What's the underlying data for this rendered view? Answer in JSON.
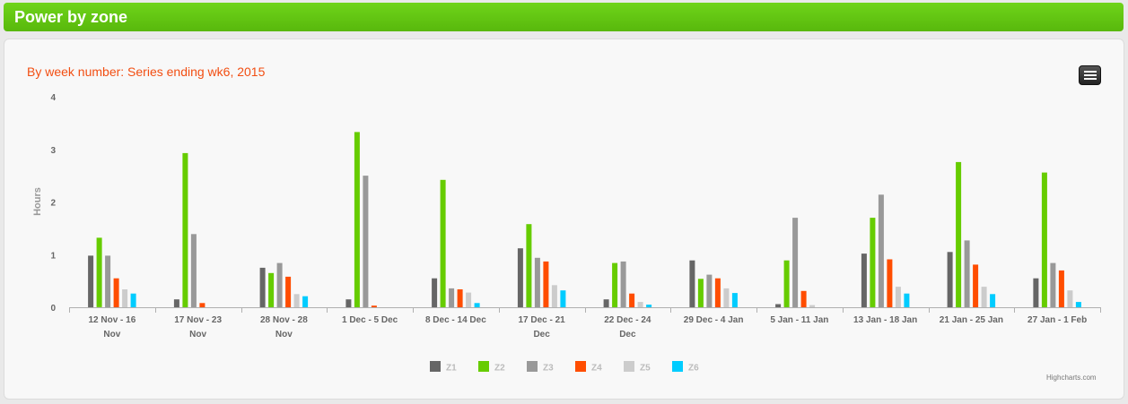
{
  "header": {
    "title": "Power by zone"
  },
  "menu": {
    "icon": "hamburger-menu-icon"
  },
  "credit": "Highcharts.com",
  "chart_data": {
    "type": "bar",
    "title": "By week number: Series ending wk6, 2015",
    "ylabel": "Hours",
    "xlabel": "",
    "ylim": [
      0,
      4
    ],
    "yticks": [
      "0",
      "1",
      "2",
      "3",
      "4"
    ],
    "grid": false,
    "legend_position": "bottom-center",
    "categories": [
      [
        "12 Nov - 16",
        "Nov"
      ],
      [
        "17 Nov - 23",
        "Nov"
      ],
      [
        "28 Nov - 28",
        "Nov"
      ],
      [
        "1 Dec - 5 Dec"
      ],
      [
        "8 Dec - 14 Dec"
      ],
      [
        "17 Dec - 21",
        "Dec"
      ],
      [
        "22 Dec - 24",
        "Dec"
      ],
      [
        "29 Dec - 4 Jan"
      ],
      [
        "5 Jan - 11 Jan"
      ],
      [
        "13 Jan - 18 Jan"
      ],
      [
        "21 Jan - 25 Jan"
      ],
      [
        "27 Jan - 1 Feb"
      ]
    ],
    "series": [
      {
        "name": "Z1",
        "color": "#666666",
        "values": [
          0.98,
          0.15,
          0.75,
          0.15,
          0.55,
          1.12,
          0.15,
          0.89,
          0.06,
          1.02,
          1.05,
          0.55
        ]
      },
      {
        "name": "Z2",
        "color": "#66cc00",
        "values": [
          1.32,
          2.93,
          0.65,
          3.33,
          2.42,
          1.58,
          0.84,
          0.54,
          0.89,
          1.7,
          2.76,
          2.56
        ]
      },
      {
        "name": "Z3",
        "color": "#999999",
        "values": [
          0.98,
          1.39,
          0.84,
          2.5,
          0.36,
          0.94,
          0.87,
          0.62,
          1.7,
          2.14,
          1.27,
          0.84
        ]
      },
      {
        "name": "Z4",
        "color": "#ff4d00",
        "values": [
          0.55,
          0.08,
          0.58,
          0.03,
          0.34,
          0.87,
          0.26,
          0.55,
          0.31,
          0.91,
          0.81,
          0.7
        ]
      },
      {
        "name": "Z5",
        "color": "#cccccc",
        "values": [
          0.34,
          0,
          0.25,
          0,
          0.28,
          0.42,
          0.1,
          0.36,
          0.04,
          0.39,
          0.39,
          0.32
        ]
      },
      {
        "name": "Z6",
        "color": "#00ccff",
        "values": [
          0.26,
          0,
          0.21,
          0,
          0.08,
          0.32,
          0.05,
          0.27,
          0,
          0.26,
          0.25,
          0.1
        ]
      }
    ]
  }
}
